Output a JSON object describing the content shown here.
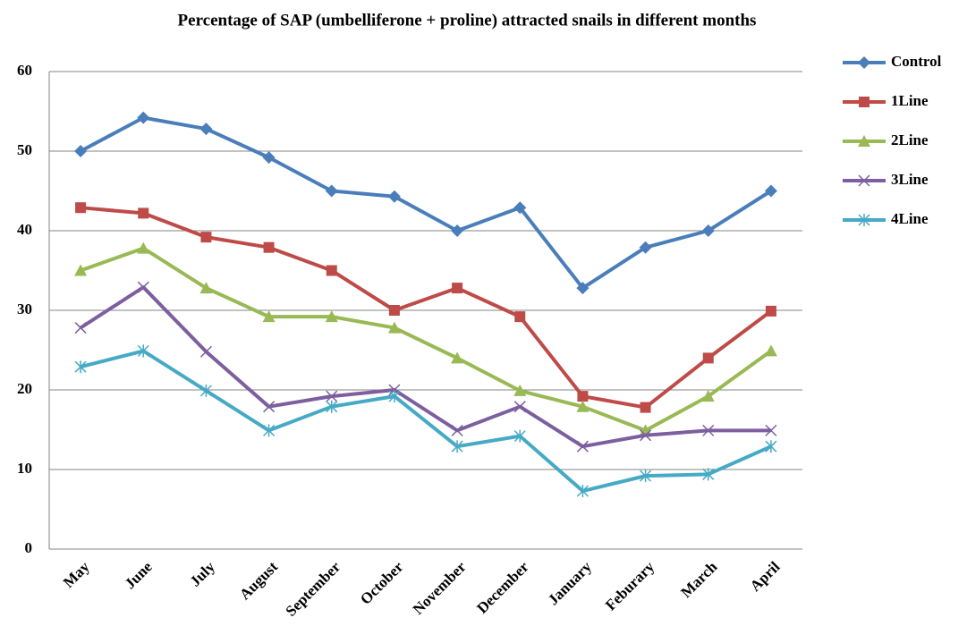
{
  "chart_data": {
    "type": "line",
    "title": "Percentage of SAP (umbelliferone + proline) attracted snails in different months",
    "categories": [
      "May",
      "June",
      "July",
      "August",
      "September",
      "October",
      "November",
      "December",
      "January",
      "Feburary",
      "March",
      "April"
    ],
    "series": [
      {
        "name": "Control",
        "color": "#4a7ebb",
        "marker": "diamond",
        "values": [
          50,
          54.2,
          52.8,
          49.2,
          45,
          44.3,
          40,
          42.9,
          32.8,
          37.9,
          40,
          45
        ]
      },
      {
        "name": "1Line",
        "color": "#be4b48",
        "marker": "square",
        "values": [
          42.9,
          42.2,
          39.2,
          37.9,
          35,
          30,
          32.8,
          29.2,
          19.2,
          17.8,
          24,
          29.9
        ]
      },
      {
        "name": "2Line",
        "color": "#98b954",
        "marker": "triangle",
        "values": [
          35,
          37.8,
          32.8,
          29.2,
          29.2,
          27.8,
          24,
          19.9,
          17.9,
          14.9,
          19.2,
          24.9
        ]
      },
      {
        "name": "3Line",
        "color": "#7d5fa0",
        "marker": "x",
        "values": [
          27.8,
          32.9,
          24.8,
          17.9,
          19.2,
          20,
          14.9,
          17.9,
          12.9,
          14.3,
          14.9,
          14.9
        ]
      },
      {
        "name": "4Line",
        "color": "#46aac5",
        "marker": "asterisk",
        "values": [
          22.9,
          24.9,
          19.9,
          14.9,
          17.9,
          19.2,
          12.9,
          14.2,
          7.3,
          9.2,
          9.4,
          12.9
        ]
      }
    ],
    "ylim": [
      0,
      60
    ],
    "yticks": [
      0,
      10,
      20,
      30,
      40,
      50,
      60
    ],
    "grid": true,
    "legend": "right"
  }
}
